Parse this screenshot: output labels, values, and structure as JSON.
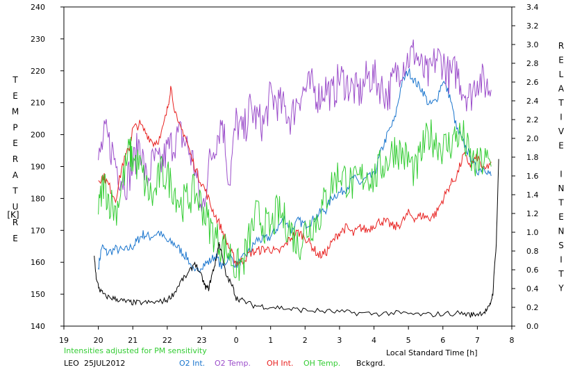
{
  "chart_data": {
    "type": "line",
    "station": "LEO",
    "date": "25JUL2012",
    "note": "Intensities adjusted for PM sensitivity",
    "xlabel": "Local Standard Time [h]",
    "ylabel_left_letters": [
      "T",
      "E",
      "M",
      "P",
      "E",
      "R",
      "A",
      "T",
      "U",
      "R",
      "E"
    ],
    "ylabel_left_unit": "[K]",
    "ylabel_right_words": [
      [
        "R",
        "E",
        "L",
        "A",
        "T",
        "I",
        "V",
        "E"
      ],
      [
        "I",
        "N",
        "T",
        "E",
        "N",
        "S",
        "I",
        "T",
        "Y"
      ]
    ],
    "x_ticks": [
      "19",
      "20",
      "21",
      "22",
      "23",
      "0",
      "1",
      "2",
      "3",
      "4",
      "5",
      "6",
      "7",
      "8"
    ],
    "x_range": [
      19,
      32
    ],
    "y_left_range": [
      140,
      240
    ],
    "y_left_ticks": [
      "140",
      "150",
      "160",
      "170",
      "180",
      "190",
      "200",
      "210",
      "220",
      "230",
      "240"
    ],
    "y_right_range": [
      0.0,
      3.4
    ],
    "y_right_ticks": [
      "0.0",
      "0.2",
      "0.4",
      "0.6",
      "0.8",
      "1.0",
      "1.2",
      "1.4",
      "1.6",
      "1.8",
      "2.0",
      "2.2",
      "2.4",
      "2.6",
      "2.8",
      "3.0",
      "3.2",
      "3.4"
    ],
    "grid": false,
    "legend_position": "bottom",
    "series": [
      {
        "name": "O2 Int.",
        "axis": "right",
        "color": "#1874cd",
        "x": [
          20.0,
          20.1,
          20.25,
          20.5,
          20.75,
          21.0,
          21.15,
          21.3,
          21.5,
          21.75,
          22.0,
          22.2,
          22.4,
          22.6,
          22.8,
          23.0,
          23.2,
          23.4,
          23.6,
          23.8,
          24.0,
          24.2,
          24.4,
          24.6,
          24.8,
          25.0,
          25.2,
          25.4,
          25.6,
          25.8,
          26.0,
          26.2,
          26.4,
          26.6,
          26.8,
          27.0,
          27.2,
          27.4,
          27.6,
          27.8,
          28.0,
          28.2,
          28.4,
          28.6,
          28.8,
          29.0,
          29.2,
          29.4,
          29.6,
          29.8,
          30.0,
          30.2,
          30.4,
          30.6,
          30.8,
          31.0,
          31.2,
          31.4
        ],
        "y": [
          0.62,
          0.85,
          0.78,
          0.82,
          0.8,
          0.85,
          0.92,
          0.98,
          0.95,
          1.0,
          0.9,
          0.88,
          0.8,
          0.72,
          0.55,
          0.65,
          0.68,
          0.75,
          0.62,
          0.75,
          0.65,
          0.72,
          0.8,
          0.92,
          0.92,
          0.95,
          1.05,
          1.15,
          1.02,
          1.12,
          1.08,
          1.12,
          1.2,
          1.24,
          1.38,
          1.42,
          1.47,
          1.58,
          1.52,
          1.58,
          1.6,
          1.85,
          2.05,
          2.2,
          2.58,
          2.72,
          2.6,
          2.52,
          2.35,
          2.4,
          2.62,
          2.45,
          2.1,
          1.95,
          1.8,
          1.65,
          1.7,
          1.6
        ]
      },
      {
        "name": "O2 Temp.",
        "axis": "left",
        "color": "#9b4dca",
        "x": [
          20.0,
          20.2,
          20.4,
          20.6,
          20.8,
          21.0,
          21.2,
          21.4,
          21.6,
          21.8,
          22.0,
          22.2,
          22.4,
          22.6,
          22.8,
          23.0,
          23.2,
          23.4,
          23.6,
          23.8,
          24.0,
          24.2,
          24.4,
          24.6,
          24.8,
          25.0,
          25.2,
          25.4,
          25.6,
          25.8,
          26.0,
          26.2,
          26.4,
          26.6,
          26.8,
          27.0,
          27.2,
          27.4,
          27.6,
          27.8,
          28.0,
          28.2,
          28.4,
          28.6,
          28.8,
          29.0,
          29.2,
          29.4,
          29.6,
          29.8,
          30.0,
          30.2,
          30.4,
          30.6,
          30.8,
          31.0,
          31.2,
          31.4
        ],
        "y": [
          192,
          200,
          195,
          188,
          185,
          190,
          198,
          185,
          192,
          190,
          195,
          198,
          200,
          196,
          190,
          175,
          190,
          198,
          205,
          185,
          204,
          200,
          208,
          205,
          203,
          212,
          210,
          208,
          205,
          212,
          214,
          215,
          212,
          215,
          212,
          218,
          216,
          214,
          213,
          218,
          218,
          215,
          212,
          218,
          222,
          224,
          226,
          220,
          218,
          224,
          223,
          218,
          220,
          214,
          212,
          218,
          216,
          214
        ]
      },
      {
        "name": "OH Int.",
        "axis": "right",
        "color": "#e8201f",
        "x": [
          20.0,
          20.15,
          20.3,
          20.5,
          20.7,
          20.9,
          21.0,
          21.2,
          21.4,
          21.6,
          21.8,
          22.0,
          22.1,
          22.3,
          22.5,
          22.7,
          22.9,
          23.1,
          23.3,
          23.5,
          23.7,
          23.9,
          24.0,
          24.2,
          24.4,
          24.6,
          24.8,
          25.0,
          25.2,
          25.4,
          25.6,
          25.8,
          26.0,
          26.2,
          26.4,
          26.6,
          26.8,
          27.0,
          27.2,
          27.4,
          27.6,
          27.8,
          28.0,
          28.2,
          28.4,
          28.6,
          28.8,
          29.0,
          29.2,
          29.4,
          29.6,
          29.8,
          30.0,
          30.2,
          30.4,
          30.6,
          30.8,
          31.0,
          31.2,
          31.4
        ],
        "y": [
          1.55,
          1.6,
          1.5,
          1.35,
          1.72,
          1.9,
          2.1,
          2.15,
          2.05,
          1.95,
          2.0,
          2.3,
          2.55,
          2.15,
          2.05,
          1.8,
          1.6,
          1.45,
          1.25,
          1.1,
          0.92,
          0.75,
          0.67,
          0.7,
          0.78,
          0.8,
          0.82,
          0.82,
          0.78,
          0.85,
          0.95,
          1.0,
          0.95,
          0.85,
          0.75,
          0.78,
          0.9,
          1.0,
          1.05,
          0.98,
          1.05,
          1.02,
          1.08,
          1.12,
          1.1,
          1.05,
          1.1,
          1.2,
          1.15,
          1.18,
          1.15,
          1.2,
          1.35,
          1.5,
          1.6,
          1.82,
          1.72,
          1.8,
          1.65,
          1.75
        ]
      },
      {
        "name": "OH Temp.",
        "axis": "left",
        "color": "#33cc33",
        "x": [
          20.0,
          20.15,
          20.3,
          20.5,
          20.7,
          20.9,
          21.0,
          21.2,
          21.4,
          21.6,
          21.8,
          22.0,
          22.2,
          22.4,
          22.6,
          22.8,
          23.0,
          23.2,
          23.4,
          23.6,
          23.8,
          24.0,
          24.2,
          24.4,
          24.6,
          24.8,
          25.0,
          25.2,
          25.4,
          25.6,
          25.8,
          26.0,
          26.2,
          26.4,
          26.6,
          26.8,
          27.0,
          27.2,
          27.4,
          27.6,
          27.8,
          28.0,
          28.2,
          28.4,
          28.6,
          28.8,
          29.0,
          29.2,
          29.4,
          29.6,
          29.8,
          30.0,
          30.2,
          30.4,
          30.6,
          30.8,
          31.0,
          31.2,
          31.4
        ],
        "y": [
          175,
          185,
          180,
          176,
          185,
          195,
          192,
          190,
          183,
          180,
          188,
          187,
          183,
          178,
          180,
          182,
          178,
          172,
          168,
          165,
          163,
          158,
          160,
          168,
          175,
          172,
          170,
          176,
          173,
          170,
          165,
          170,
          172,
          174,
          180,
          185,
          188,
          186,
          184,
          186,
          188,
          186,
          190,
          192,
          196,
          194,
          192,
          188,
          195,
          200,
          198,
          196,
          197,
          200,
          199,
          192,
          190,
          192,
          190
        ]
      },
      {
        "name": "Bckgrd.",
        "axis": "right",
        "color": "#000000",
        "x": [
          19.88,
          19.95,
          20.05,
          20.2,
          20.4,
          20.6,
          20.8,
          21.0,
          21.2,
          21.5,
          21.8,
          22.0,
          22.2,
          22.4,
          22.6,
          22.8,
          23.0,
          23.1,
          23.2,
          23.3,
          23.4,
          23.5,
          23.55,
          23.7,
          23.9,
          24.0,
          24.2,
          24.5,
          24.8,
          25.2,
          25.6,
          26.0,
          26.5,
          27.0,
          27.5,
          28.0,
          28.5,
          29.0,
          29.5,
          30.0,
          30.5,
          30.8,
          31.0,
          31.2,
          31.35,
          31.45,
          31.55,
          31.62
        ],
        "y": [
          0.75,
          0.48,
          0.38,
          0.32,
          0.3,
          0.28,
          0.26,
          0.25,
          0.25,
          0.25,
          0.26,
          0.28,
          0.35,
          0.48,
          0.55,
          0.68,
          0.52,
          0.42,
          0.4,
          0.55,
          0.68,
          0.88,
          0.82,
          0.55,
          0.42,
          0.3,
          0.27,
          0.22,
          0.21,
          0.2,
          0.18,
          0.17,
          0.16,
          0.15,
          0.14,
          0.13,
          0.14,
          0.13,
          0.12,
          0.13,
          0.14,
          0.12,
          0.13,
          0.15,
          0.2,
          0.35,
          0.9,
          1.78
        ]
      }
    ]
  }
}
